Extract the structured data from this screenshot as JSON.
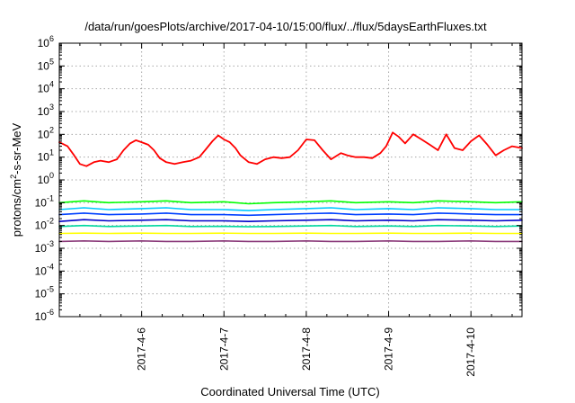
{
  "chart_data": {
    "type": "line",
    "title": "/data/run/goesPlots/archive/2017-04-10/15:00/flux/../flux/5daysEarthFluxes.txt",
    "xlabel": "Coordinated Universal Time (UTC)",
    "ylabel_parts": {
      "pre": "protons/cm",
      "sup": "2",
      "post": "-s-sr-MeV"
    },
    "yscale": "log",
    "ylim": [
      1e-06,
      1000000.0
    ],
    "xlim": [
      0.0,
      5.62
    ],
    "x_start_day": "2017-04-05",
    "x_ticks": [
      {
        "x": 1,
        "label": "2017-4-6"
      },
      {
        "x": 2,
        "label": "2017-4-7"
      },
      {
        "x": 3,
        "label": "2017-4-8"
      },
      {
        "x": 4,
        "label": "2017-4-9"
      },
      {
        "x": 5,
        "label": "2017-4-10"
      }
    ],
    "y_ticks": [
      {
        "exp": -6,
        "label_base": "10",
        "label_exp": "-6"
      },
      {
        "exp": -5,
        "label_base": "10",
        "label_exp": "-5"
      },
      {
        "exp": -4,
        "label_base": "10",
        "label_exp": "-4"
      },
      {
        "exp": -3,
        "label_base": "10",
        "label_exp": "-3"
      },
      {
        "exp": -2,
        "label_base": "10",
        "label_exp": "-2"
      },
      {
        "exp": -1,
        "label_base": "10",
        "label_exp": "-1"
      },
      {
        "exp": 0,
        "label_base": "10",
        "label_exp": "0"
      },
      {
        "exp": 1,
        "label_base": "10",
        "label_exp": "1"
      },
      {
        "exp": 2,
        "label_base": "10",
        "label_exp": "2"
      },
      {
        "exp": 3,
        "label_base": "10",
        "label_exp": "3"
      },
      {
        "exp": 4,
        "label_base": "10",
        "label_exp": "4"
      },
      {
        "exp": 5,
        "label_base": "10",
        "label_exp": "5"
      },
      {
        "exp": 6,
        "label_base": "10",
        "label_exp": "6"
      }
    ],
    "grid": true,
    "series": [
      {
        "color": "#ff0000",
        "x": [
          0.0,
          0.1,
          0.18,
          0.25,
          0.33,
          0.42,
          0.5,
          0.6,
          0.7,
          0.78,
          0.86,
          0.93,
          1.0,
          1.08,
          1.15,
          1.22,
          1.3,
          1.4,
          1.5,
          1.6,
          1.7,
          1.78,
          1.86,
          1.93,
          2.0,
          2.07,
          2.14,
          2.2,
          2.3,
          2.4,
          2.5,
          2.6,
          2.7,
          2.8,
          2.9,
          3.0,
          3.1,
          3.2,
          3.3,
          3.42,
          3.5,
          3.6,
          3.7,
          3.8,
          3.9,
          3.97,
          4.05,
          4.12,
          4.2,
          4.3,
          4.4,
          4.5,
          4.6,
          4.7,
          4.8,
          4.9,
          5.0,
          5.1,
          5.2,
          5.3,
          5.4,
          5.5,
          5.62
        ],
        "values": [
          45,
          30,
          12,
          5,
          4,
          6,
          7,
          6,
          8,
          20,
          40,
          55,
          45,
          35,
          20,
          9,
          6,
          5,
          6,
          7,
          10,
          22,
          50,
          90,
          60,
          45,
          25,
          12,
          6,
          5,
          8,
          10,
          9,
          10,
          20,
          60,
          55,
          20,
          8,
          15,
          12,
          10,
          10,
          9,
          15,
          30,
          120,
          80,
          40,
          100,
          60,
          35,
          20,
          100,
          25,
          20,
          50,
          90,
          35,
          12,
          20,
          30,
          25
        ]
      },
      {
        "color": "#00ff00",
        "x": [
          0.0,
          0.3,
          0.6,
          1.0,
          1.3,
          1.6,
          2.0,
          2.3,
          2.6,
          3.0,
          3.3,
          3.6,
          4.0,
          4.3,
          4.6,
          5.0,
          5.3,
          5.62
        ],
        "values": [
          0.1,
          0.12,
          0.1,
          0.11,
          0.12,
          0.1,
          0.11,
          0.09,
          0.1,
          0.11,
          0.12,
          0.1,
          0.11,
          0.1,
          0.12,
          0.11,
          0.1,
          0.11
        ]
      },
      {
        "color": "#00c8ff",
        "x": [
          0.0,
          0.3,
          0.6,
          1.0,
          1.3,
          1.6,
          2.0,
          2.3,
          2.6,
          3.0,
          3.3,
          3.6,
          4.0,
          4.3,
          4.6,
          5.0,
          5.3,
          5.62
        ],
        "values": [
          0.05,
          0.06,
          0.05,
          0.055,
          0.06,
          0.05,
          0.05,
          0.045,
          0.05,
          0.055,
          0.06,
          0.05,
          0.055,
          0.05,
          0.06,
          0.055,
          0.05,
          0.05
        ]
      },
      {
        "color": "#0040ff",
        "x": [
          0.0,
          0.3,
          0.6,
          1.0,
          1.3,
          1.6,
          2.0,
          2.3,
          2.6,
          3.0,
          3.3,
          3.6,
          4.0,
          4.3,
          4.6,
          5.0,
          5.3,
          5.62
        ],
        "values": [
          0.03,
          0.035,
          0.03,
          0.032,
          0.035,
          0.03,
          0.03,
          0.028,
          0.03,
          0.033,
          0.035,
          0.03,
          0.032,
          0.03,
          0.035,
          0.032,
          0.03,
          0.03
        ]
      },
      {
        "color": "#0000c8",
        "x": [
          0.0,
          0.3,
          0.6,
          1.0,
          1.3,
          1.6,
          2.0,
          2.3,
          2.6,
          3.0,
          3.3,
          3.6,
          4.0,
          4.3,
          4.6,
          5.0,
          5.3,
          5.62
        ],
        "values": [
          0.015,
          0.018,
          0.016,
          0.017,
          0.018,
          0.016,
          0.016,
          0.015,
          0.016,
          0.017,
          0.018,
          0.016,
          0.017,
          0.016,
          0.018,
          0.017,
          0.016,
          0.017
        ]
      },
      {
        "color": "#00d8a0",
        "x": [
          0.0,
          0.3,
          0.6,
          1.0,
          1.3,
          1.6,
          2.0,
          2.3,
          2.6,
          3.0,
          3.3,
          3.6,
          4.0,
          4.3,
          4.6,
          5.0,
          5.3,
          5.62
        ],
        "values": [
          0.009,
          0.01,
          0.009,
          0.0095,
          0.01,
          0.009,
          0.0092,
          0.0088,
          0.009,
          0.0095,
          0.01,
          0.009,
          0.0095,
          0.009,
          0.01,
          0.0095,
          0.009,
          0.0095
        ]
      },
      {
        "color": "#ffff00",
        "x": [
          0.0,
          0.3,
          0.6,
          1.0,
          1.3,
          1.6,
          2.0,
          2.3,
          2.6,
          3.0,
          3.3,
          3.6,
          4.0,
          4.3,
          4.6,
          5.0,
          5.3,
          5.62
        ],
        "values": [
          0.0045,
          0.0046,
          0.0045,
          0.0046,
          0.0045,
          0.0045,
          0.0046,
          0.0045,
          0.0045,
          0.0046,
          0.0045,
          0.0045,
          0.0046,
          0.0045,
          0.0045,
          0.0046,
          0.0045,
          0.0045
        ]
      },
      {
        "color": "#8b3a7a",
        "x": [
          0.0,
          0.3,
          0.6,
          1.0,
          1.3,
          1.6,
          2.0,
          2.3,
          2.6,
          3.0,
          3.3,
          3.6,
          4.0,
          4.3,
          4.6,
          5.0,
          5.3,
          5.62
        ],
        "values": [
          0.002,
          0.0021,
          0.002,
          0.0021,
          0.002,
          0.002,
          0.0021,
          0.002,
          0.002,
          0.0021,
          0.002,
          0.002,
          0.0021,
          0.002,
          0.002,
          0.0021,
          0.002,
          0.002
        ]
      }
    ]
  }
}
